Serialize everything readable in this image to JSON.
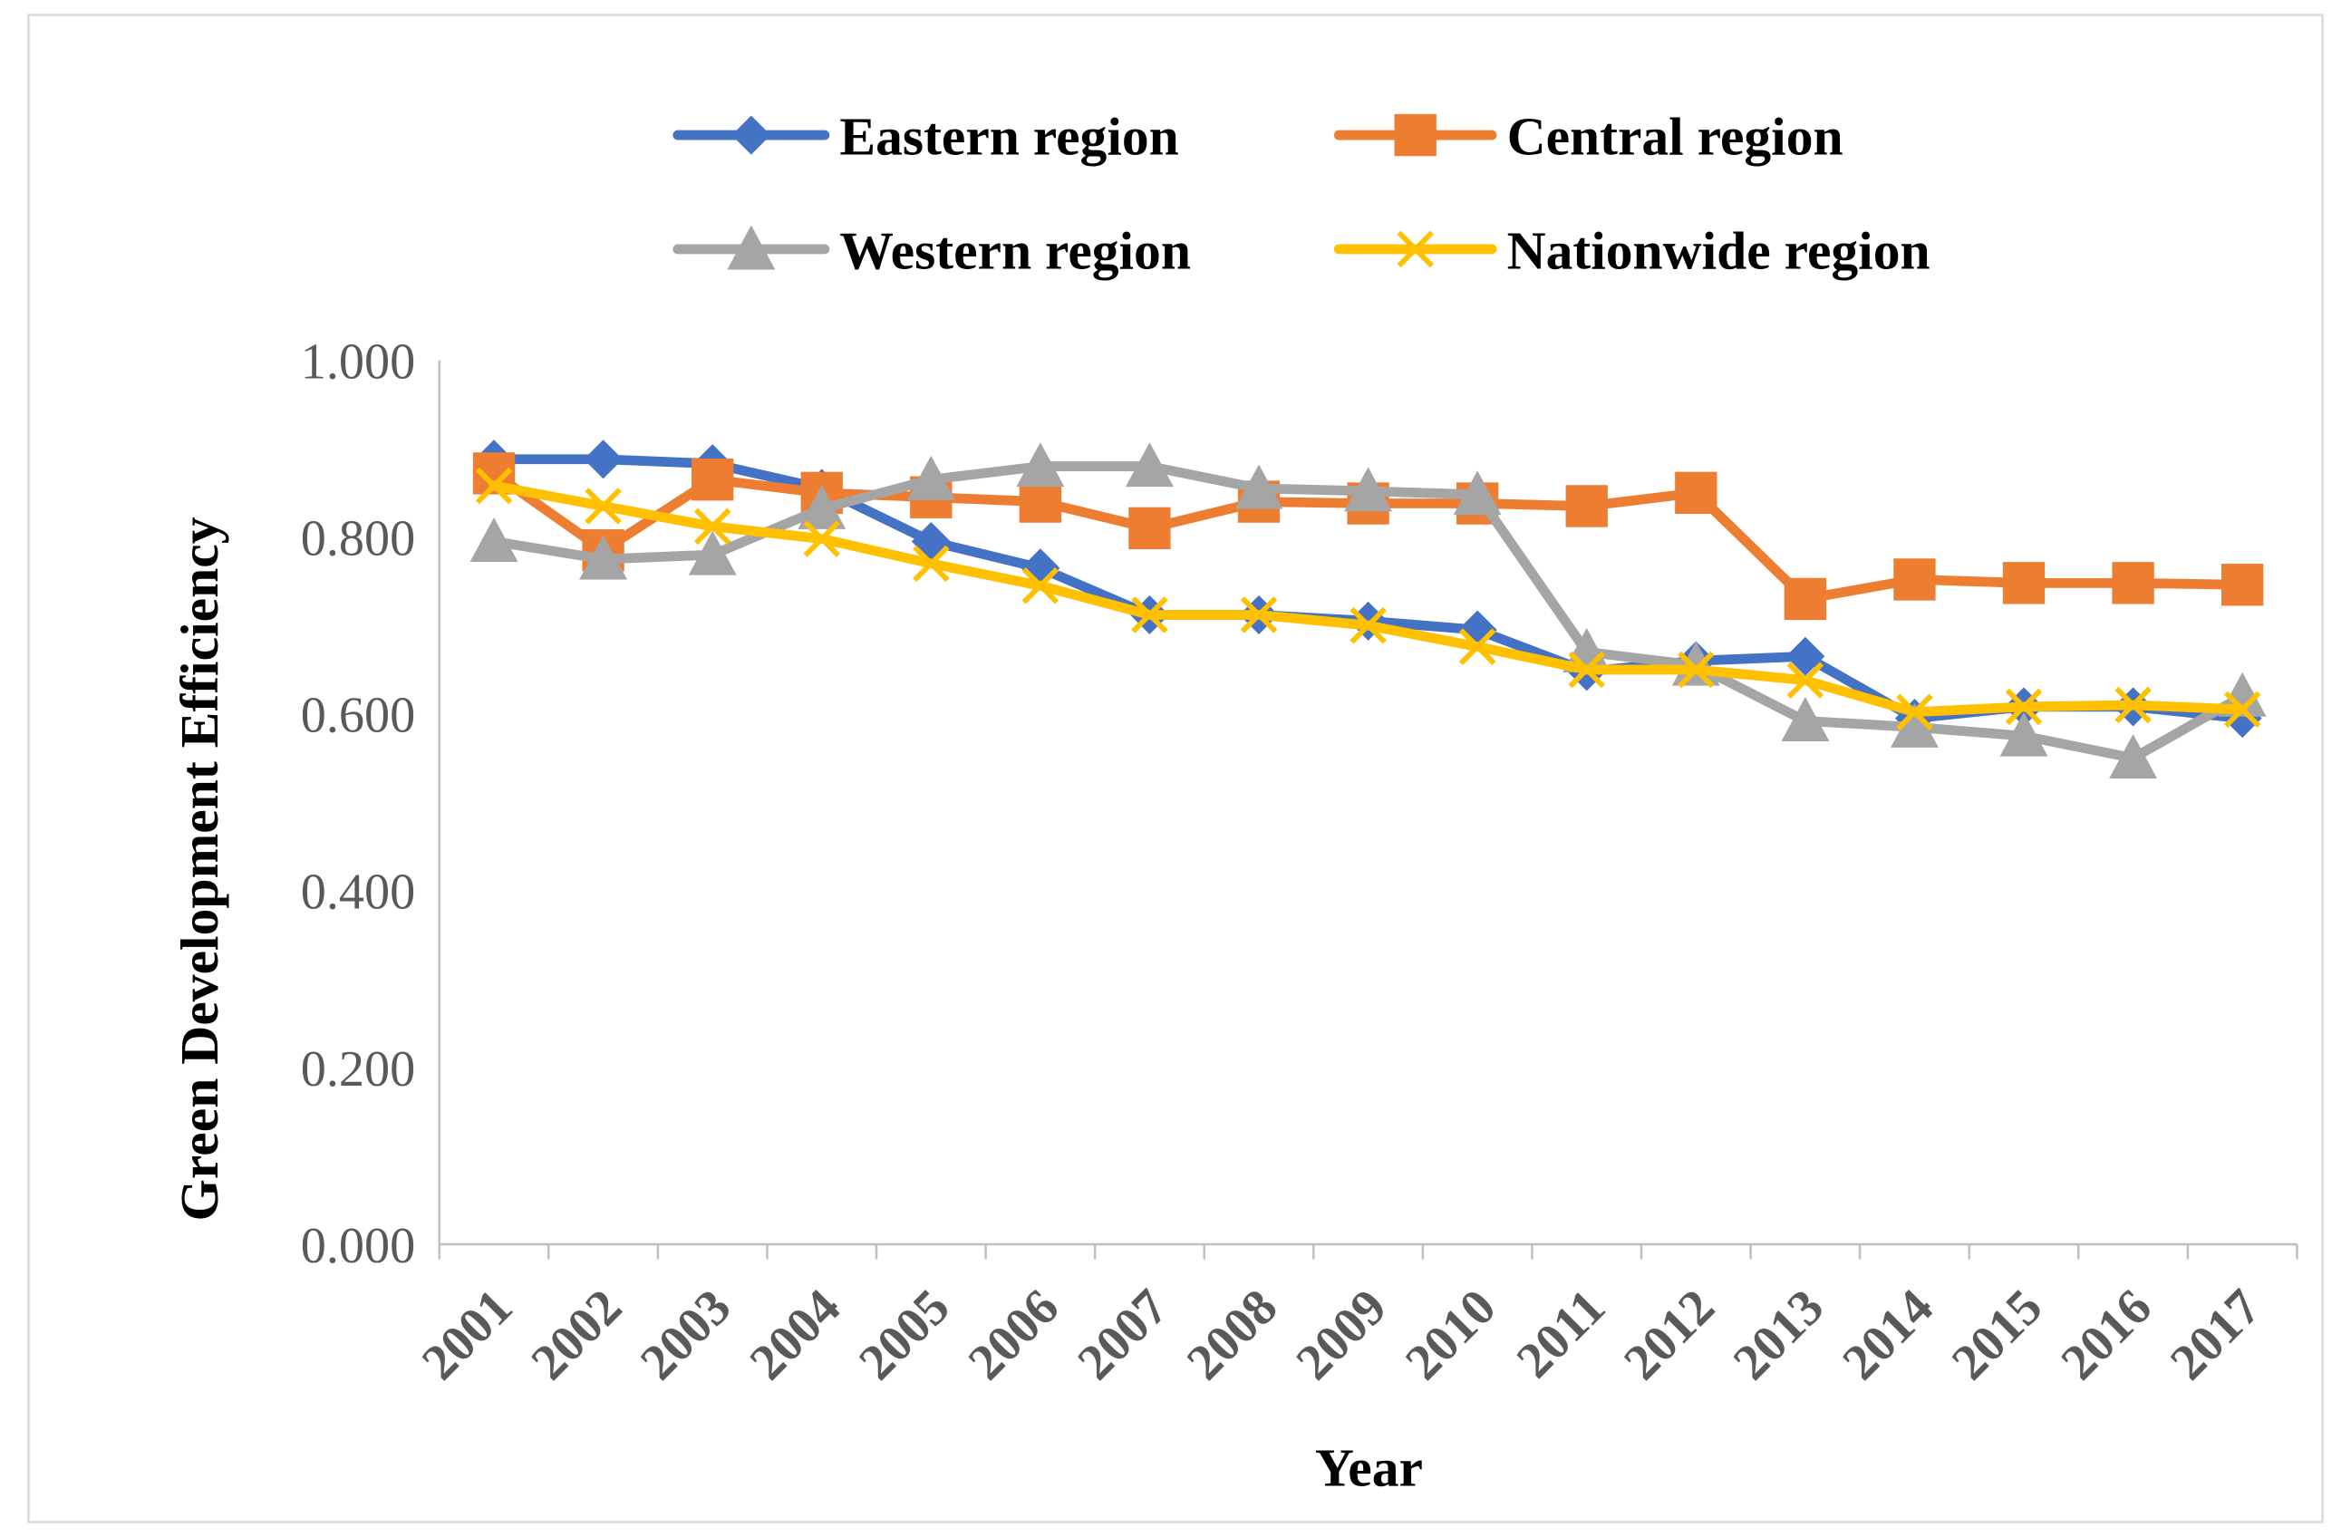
{
  "chart_data": {
    "type": "line",
    "xlabel": "Year",
    "ylabel": "Green Development  Efficiency",
    "ylim": [
      0,
      1
    ],
    "yticks": [
      "0.000",
      "0.200",
      "0.400",
      "0.600",
      "0.800",
      "1.000"
    ],
    "ytick_values": [
      0,
      0.2,
      0.4,
      0.6,
      0.8,
      1.0
    ],
    "categories": [
      "2001",
      "2002",
      "2003",
      "2004",
      "2005",
      "2006",
      "2007",
      "2008",
      "2009",
      "2010",
      "2011",
      "2012",
      "2013",
      "2014",
      "2015",
      "2016",
      "2017"
    ],
    "grid": false,
    "legend_position": "top",
    "series": [
      {
        "name": "Eastern region",
        "color": "#4472c4",
        "marker": "diamond",
        "values": [
          0.888,
          0.888,
          0.883,
          0.855,
          0.795,
          0.765,
          0.712,
          0.712,
          0.705,
          0.695,
          0.648,
          0.66,
          0.665,
          0.595,
          0.608,
          0.608,
          0.595
        ]
      },
      {
        "name": "Central region",
        "color": "#ed7d31",
        "marker": "square",
        "values": [
          0.872,
          0.785,
          0.865,
          0.85,
          0.845,
          0.84,
          0.81,
          0.84,
          0.838,
          0.838,
          0.835,
          0.85,
          0.73,
          0.752,
          0.748,
          0.748,
          0.746
        ]
      },
      {
        "name": "Western region",
        "color": "#a5a5a5",
        "marker": "triangle",
        "values": [
          0.795,
          0.775,
          0.78,
          0.832,
          0.865,
          0.88,
          0.88,
          0.855,
          0.852,
          0.848,
          0.67,
          0.655,
          0.592,
          0.585,
          0.575,
          0.55,
          0.62
        ]
      },
      {
        "name": "Nationwide region",
        "color": "#ffc000",
        "marker": "x",
        "values": [
          0.858,
          0.835,
          0.812,
          0.798,
          0.77,
          0.745,
          0.712,
          0.712,
          0.7,
          0.676,
          0.65,
          0.65,
          0.638,
          0.602,
          0.608,
          0.61,
          0.605
        ]
      }
    ]
  }
}
